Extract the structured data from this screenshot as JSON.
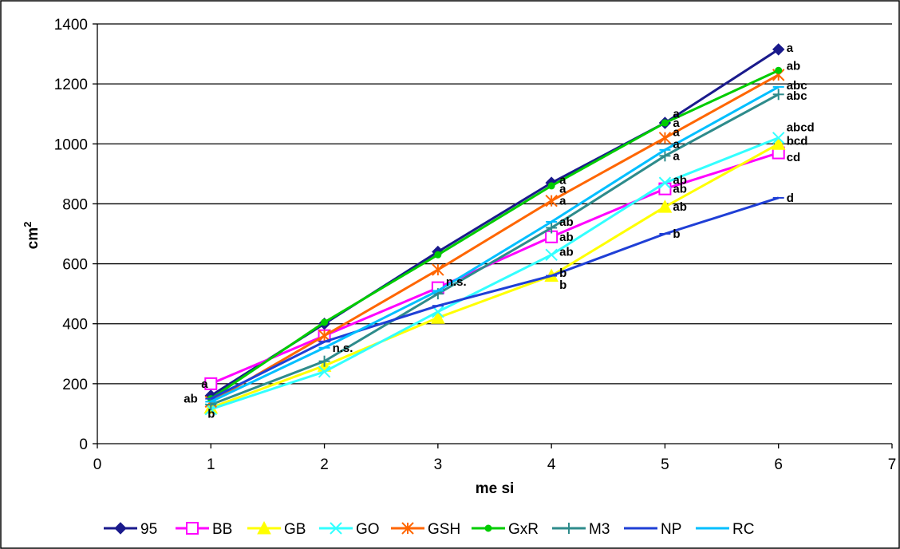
{
  "chart_data": {
    "type": "line",
    "xlabel": "me si",
    "ylabel": "cm",
    "ylabel_superscript": "2",
    "xlim": [
      0,
      7
    ],
    "ylim": [
      0,
      1400
    ],
    "x_ticks": [
      "0",
      "1",
      "2",
      "3",
      "4",
      "5",
      "6",
      "7"
    ],
    "y_ticks": [
      "0",
      "200",
      "400",
      "600",
      "800",
      "1000",
      "1200",
      "1400"
    ],
    "grid": "horizontal",
    "legend_position": "bottom",
    "x": [
      1,
      2,
      3,
      4,
      5,
      6
    ],
    "series": [
      {
        "name": "95",
        "color": "#1a1a8c",
        "marker": "diamond",
        "values": [
          160,
          400,
          640,
          870,
          1070,
          1315
        ]
      },
      {
        "name": "BB",
        "color": "#ff00ff",
        "marker": "square",
        "values": [
          200,
          360,
          520,
          690,
          850,
          970
        ]
      },
      {
        "name": "GB",
        "color": "#ffff00",
        "marker": "triangle",
        "values": [
          120,
          260,
          420,
          560,
          790,
          1000
        ]
      },
      {
        "name": "GO",
        "color": "#33ffff",
        "marker": "x",
        "values": [
          115,
          240,
          440,
          630,
          870,
          1020
        ]
      },
      {
        "name": "GSH",
        "color": "#ff6600",
        "marker": "star",
        "values": [
          140,
          360,
          580,
          810,
          1020,
          1230
        ]
      },
      {
        "name": "GxR",
        "color": "#00cc00",
        "marker": "dot",
        "values": [
          150,
          405,
          630,
          860,
          1070,
          1245
        ]
      },
      {
        "name": "M3",
        "color": "#2e8b8b",
        "marker": "plus",
        "values": [
          130,
          275,
          500,
          720,
          960,
          1165
        ]
      },
      {
        "name": "NP",
        "color": "#1f3fd6",
        "marker": "dash",
        "values": [
          150,
          340,
          460,
          560,
          700,
          820
        ]
      },
      {
        "name": "RC",
        "color": "#00bfff",
        "marker": "dash",
        "values": [
          140,
          320,
          510,
          740,
          980,
          1190
        ]
      }
    ],
    "annotations": [
      {
        "text": "a",
        "x": 1,
        "y": 200
      },
      {
        "text": "ab",
        "x": 1,
        "y": 150
      },
      {
        "text": "b",
        "x": 1,
        "y": 100
      },
      {
        "text": "n.s.",
        "x": 2,
        "y": 320
      },
      {
        "text": "n.s.",
        "x": 3,
        "y": 540
      },
      {
        "text": "a",
        "x": 4,
        "y": 880
      },
      {
        "text": "a",
        "x": 4,
        "y": 850
      },
      {
        "text": "a",
        "x": 4,
        "y": 810
      },
      {
        "text": "ab",
        "x": 4,
        "y": 740
      },
      {
        "text": "ab",
        "x": 4,
        "y": 690
      },
      {
        "text": "ab",
        "x": 4,
        "y": 640
      },
      {
        "text": "b",
        "x": 4,
        "y": 570
      },
      {
        "text": "b",
        "x": 4,
        "y": 530
      },
      {
        "text": "a",
        "x": 5,
        "y": 1100
      },
      {
        "text": "a",
        "x": 5,
        "y": 1070
      },
      {
        "text": "a",
        "x": 5,
        "y": 1040
      },
      {
        "text": "a",
        "x": 5,
        "y": 1000
      },
      {
        "text": "a",
        "x": 5,
        "y": 960
      },
      {
        "text": "ab",
        "x": 5,
        "y": 880
      },
      {
        "text": "ab",
        "x": 5,
        "y": 850
      },
      {
        "text": "ab",
        "x": 5,
        "y": 790
      },
      {
        "text": "b",
        "x": 5,
        "y": 700
      },
      {
        "text": "a",
        "x": 6,
        "y": 1320
      },
      {
        "text": "ab",
        "x": 6,
        "y": 1260
      },
      {
        "text": "abc",
        "x": 6,
        "y": 1195
      },
      {
        "text": "abc",
        "x": 6,
        "y": 1160
      },
      {
        "text": "abcd",
        "x": 6,
        "y": 1055
      },
      {
        "text": "bcd",
        "x": 6,
        "y": 1010
      },
      {
        "text": "cd",
        "x": 6,
        "y": 955
      },
      {
        "text": "d",
        "x": 6,
        "y": 820
      }
    ]
  }
}
